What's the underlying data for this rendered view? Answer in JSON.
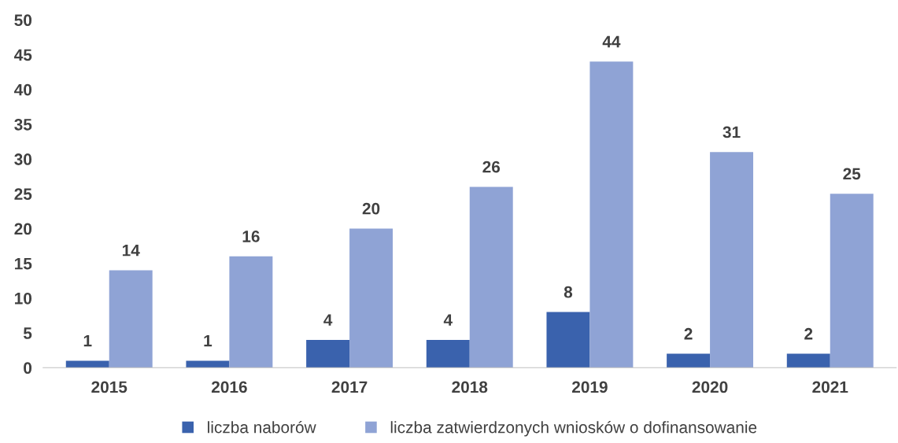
{
  "chart_data": {
    "type": "bar",
    "categories": [
      "2015",
      "2016",
      "2017",
      "2018",
      "2019",
      "2020",
      "2021"
    ],
    "series": [
      {
        "name": "liczba naborów",
        "color": "#3a62ad",
        "values": [
          1,
          1,
          4,
          4,
          8,
          2,
          2
        ]
      },
      {
        "name": "liczba zatwierdzonych wniosków o dofinansowanie",
        "color": "#8fa3d5",
        "values": [
          14,
          16,
          20,
          26,
          44,
          31,
          25
        ]
      }
    ],
    "ylim": [
      0,
      50
    ],
    "yticks": [
      0,
      5,
      10,
      15,
      20,
      25,
      30,
      35,
      40,
      45,
      50
    ],
    "grid": false,
    "legend": "bottom",
    "data_labels": true
  }
}
